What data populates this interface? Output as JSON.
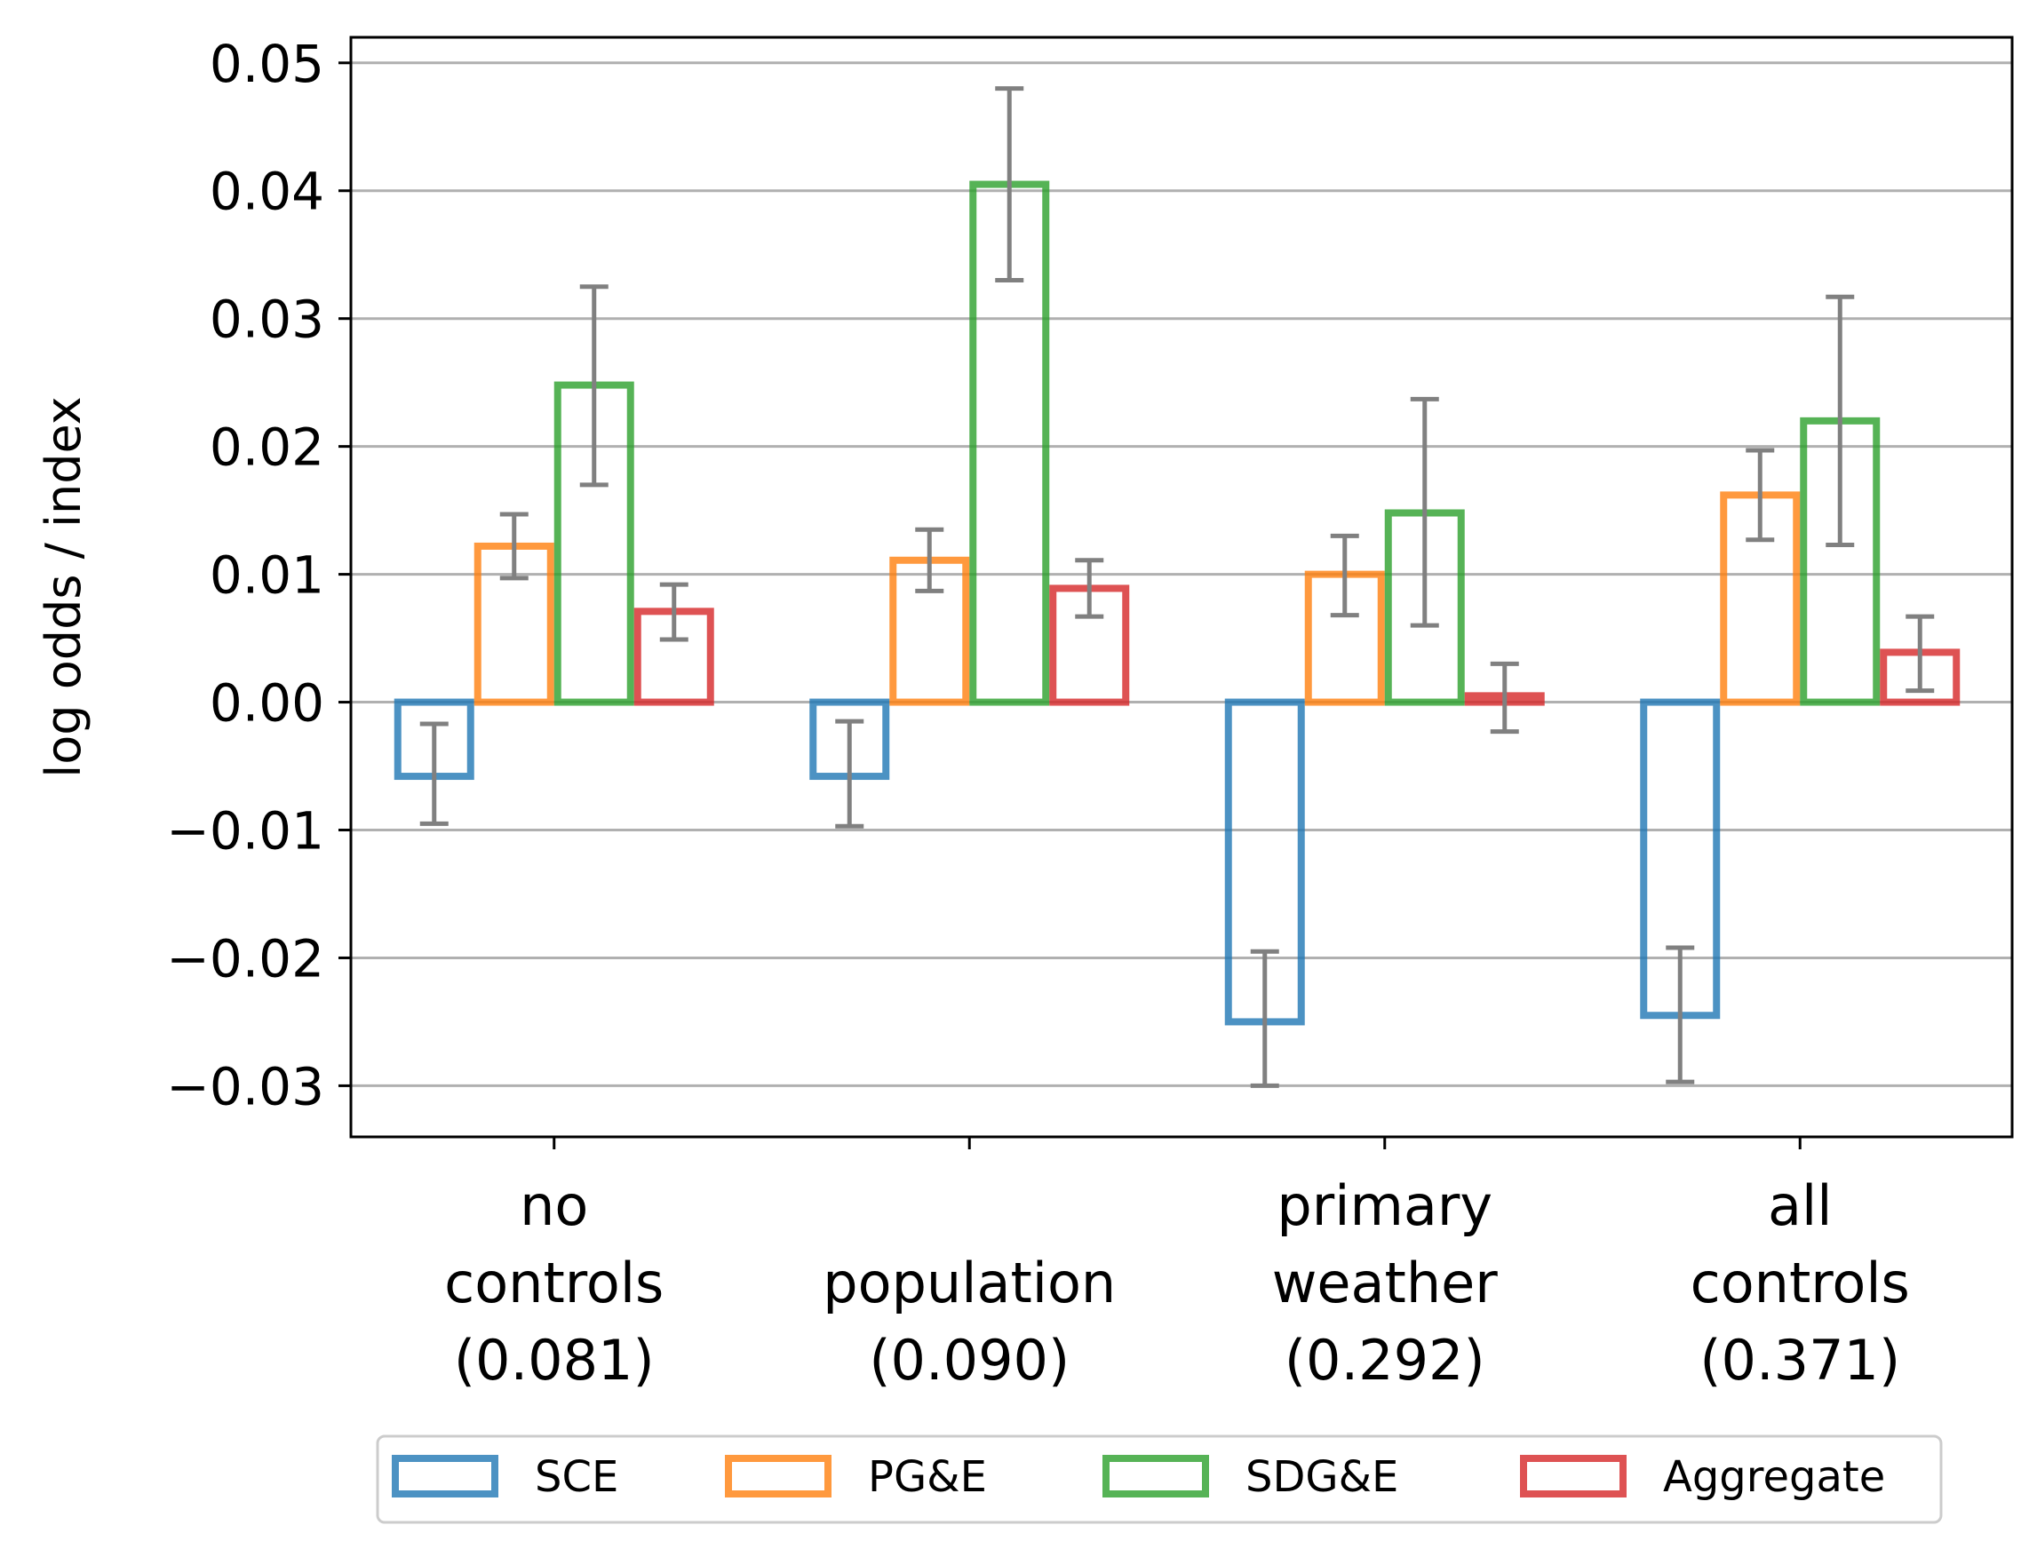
{
  "chart_data": {
    "type": "bar",
    "title": "",
    "xlabel": "",
    "ylabel": "log odds / index",
    "ylim": [
      -0.034,
      0.052
    ],
    "yticks": [
      0.05,
      0.04,
      0.03,
      0.02,
      0.01,
      0.0,
      -0.01,
      -0.02,
      -0.03
    ],
    "ytick_labels": [
      "0.05",
      "0.04",
      "0.03",
      "0.02",
      "0.01",
      "0.00",
      "−0.01",
      "−0.02",
      "−0.03"
    ],
    "grid": "horizontal",
    "categories": [
      [
        "no",
        "controls",
        "(0.081)"
      ],
      [
        "population",
        "(0.090)"
      ],
      [
        "primary",
        "weather",
        "(0.292)"
      ],
      [
        "all",
        "controls",
        "(0.371)"
      ]
    ],
    "series": [
      {
        "name": "SCE",
        "color": "#1f77b4",
        "values": [
          -0.0058,
          -0.0058,
          -0.025,
          -0.0245
        ],
        "err_low": [
          -0.0095,
          -0.0097,
          -0.03,
          -0.0297
        ],
        "err_high": [
          -0.0017,
          -0.0015,
          -0.0195,
          -0.0192
        ]
      },
      {
        "name": "PG&E",
        "color": "#ff7f0e",
        "values": [
          0.0122,
          0.0111,
          0.01,
          0.0162
        ],
        "err_low": [
          0.0097,
          0.0087,
          0.0068,
          0.0127
        ],
        "err_high": [
          0.0147,
          0.0135,
          0.013,
          0.0197
        ]
      },
      {
        "name": "SDG&E",
        "color": "#2ca02c",
        "values": [
          0.0248,
          0.0405,
          0.0148,
          0.022
        ],
        "err_low": [
          0.017,
          0.033,
          0.006,
          0.0123
        ],
        "err_high": [
          0.0325,
          0.048,
          0.0237,
          0.0317
        ]
      },
      {
        "name": "Aggregate",
        "color": "#d62728",
        "values": [
          0.0071,
          0.0089,
          0.0005,
          0.0039
        ],
        "err_low": [
          0.0049,
          0.0067,
          -0.0023,
          0.0009
        ],
        "err_high": [
          0.0092,
          0.0111,
          0.003,
          0.0067
        ]
      }
    ],
    "legend": {
      "position": "bottom-center",
      "entries": [
        "SCE",
        "PG&E",
        "SDG&E",
        "Aggregate"
      ]
    }
  }
}
